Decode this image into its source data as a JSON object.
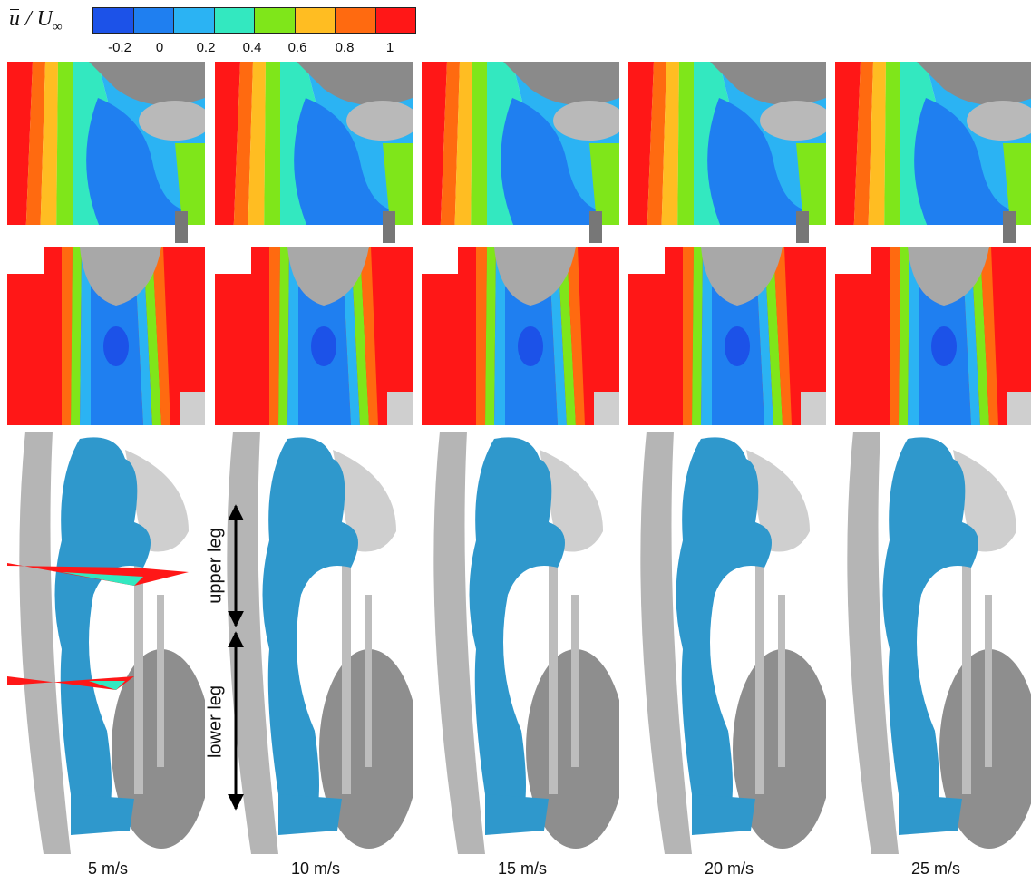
{
  "colorbar": {
    "label_base": "u",
    "label_sep": "/ U",
    "label_sub": "∞",
    "ticks": [
      "-0.2",
      "0",
      "0.2",
      "0.4",
      "0.6",
      "0.8",
      "1"
    ],
    "colors": [
      "#1c52e8",
      "#1f7ff0",
      "#2bb3f3",
      "#33e8c0",
      "#7fe61a",
      "#ffbd22",
      "#ff6a10",
      "#ff1717"
    ]
  },
  "speeds": [
    "5 m/s",
    "10 m/s",
    "15 m/s",
    "20 m/s",
    "25 m/s"
  ],
  "segments": {
    "upper": "upper leg",
    "lower": "lower leg"
  }
}
